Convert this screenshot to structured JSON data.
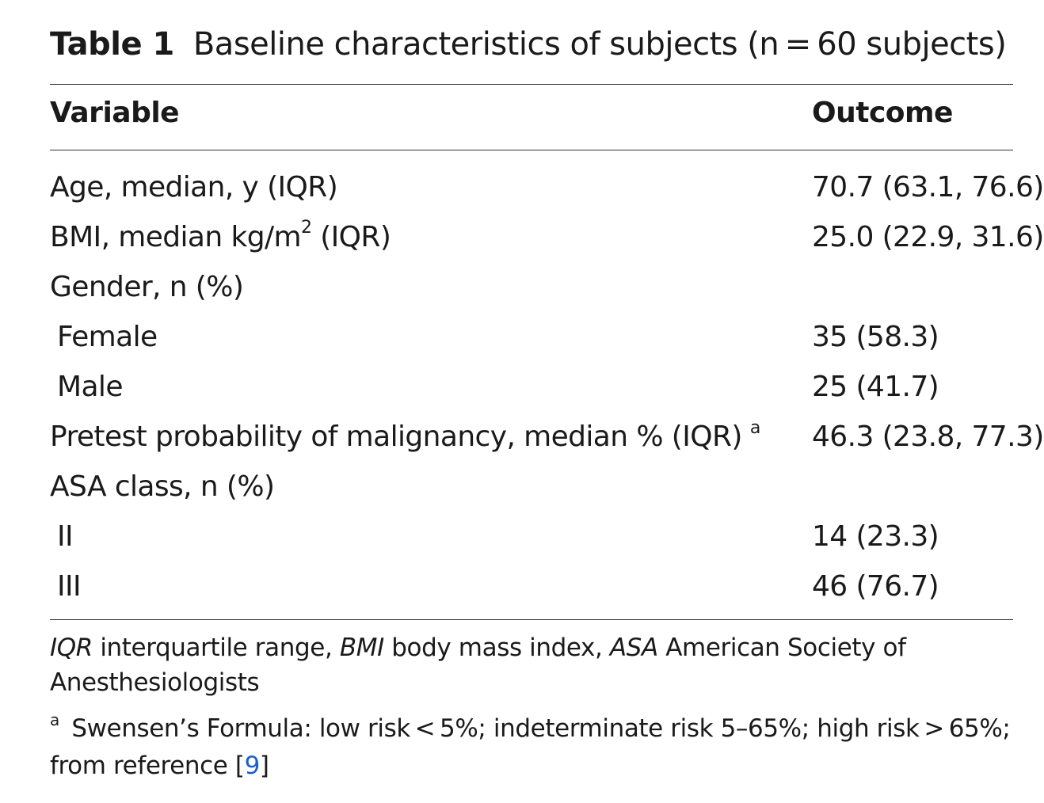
{
  "table": {
    "label": "Table 1",
    "title": "Baseline characteristics of subjects (n = 60 subjects)",
    "columns": {
      "variable": "Variable",
      "outcome": "Outcome"
    },
    "rows": [
      {
        "variable": "Age, median, y (IQR)",
        "outcome": "70.7 (63.1, 76.6)"
      },
      {
        "variable_pre": "BMI, median kg/m",
        "variable_sup": "2",
        "variable_post": " (IQR)",
        "outcome": "25.0 (22.9, 31.6)"
      },
      {
        "variable": "Gender, n (%)",
        "outcome": ""
      },
      {
        "variable": "Female",
        "outcome": "35 (58.3)"
      },
      {
        "variable": "Male",
        "outcome": "25 (41.7)"
      },
      {
        "variable": "Pretest probability of malignancy, median % (IQR)",
        "footnote_mark": "a",
        "outcome": "46.3 (23.8, 77.3)"
      },
      {
        "variable": "ASA class, n (%)",
        "outcome": ""
      },
      {
        "variable": "II",
        "outcome": "14 (23.3)"
      },
      {
        "variable": "III",
        "outcome": "46 (76.7)"
      }
    ]
  },
  "footnotes": {
    "abbrev": [
      {
        "abbr": "IQR",
        "text": " interquartile range, "
      },
      {
        "abbr": "BMI",
        "text": " body mass index, "
      },
      {
        "abbr": "ASA",
        "text": " American Society of Anesthesiologists"
      }
    ],
    "note_mark": "a",
    "note_text": " Swensen’s Formula: low risk < 5%; indeterminate risk 5–65%; high risk > 65%; from reference [",
    "note_ref": "9",
    "note_end": "]"
  },
  "colors": {
    "text": "#1a1a1a",
    "rule": "#333333",
    "link": "#1a5fd0"
  }
}
